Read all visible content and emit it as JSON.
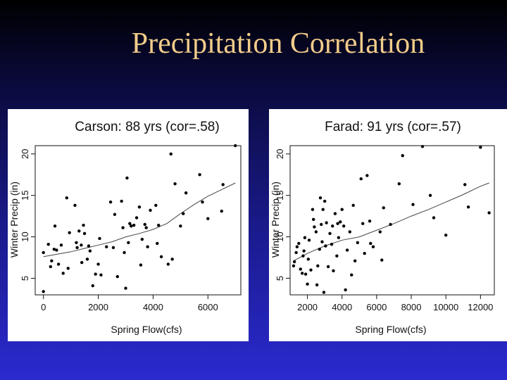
{
  "slide": {
    "title": "Precipitation Correlation",
    "background": "#1a1a8c",
    "title_color": "#f2cc8a"
  },
  "chart_data": [
    {
      "type": "scatter",
      "title": "Carson: 88 yrs (cor=.58)",
      "xlabel": "Spring Flow(cfs)",
      "ylabel": "Winter Precip (in)",
      "xlim": [
        -300,
        7200
      ],
      "ylim": [
        3,
        21
      ],
      "xticks": [
        0,
        2000,
        4000,
        6000
      ],
      "xtick_labels": [
        "0",
        "2000",
        "4000",
        "6000"
      ],
      "yticks": [
        5,
        10,
        15,
        20
      ],
      "ytick_labels": [
        "5",
        "10",
        "15",
        "20"
      ],
      "trend": [
        [
          0,
          7.6
        ],
        [
          500,
          7.9
        ],
        [
          1000,
          8.2
        ],
        [
          1500,
          8.6
        ],
        [
          2000,
          9.0
        ],
        [
          2500,
          9.4
        ],
        [
          3000,
          10.0
        ],
        [
          3500,
          10.4
        ],
        [
          4000,
          10.9
        ],
        [
          4500,
          11.6
        ],
        [
          5000,
          12.8
        ],
        [
          5500,
          13.9
        ],
        [
          6000,
          14.9
        ],
        [
          6500,
          15.7
        ],
        [
          7000,
          16.5
        ]
      ],
      "points": [
        [
          0,
          3.4
        ],
        [
          0,
          8.1
        ],
        [
          180,
          9.1
        ],
        [
          260,
          6.4
        ],
        [
          300,
          7.1
        ],
        [
          390,
          8.5
        ],
        [
          420,
          11.3
        ],
        [
          480,
          8.4
        ],
        [
          550,
          6.7
        ],
        [
          650,
          9.0
        ],
        [
          720,
          5.6
        ],
        [
          850,
          14.7
        ],
        [
          900,
          6.2
        ],
        [
          950,
          10.5
        ],
        [
          1150,
          13.8
        ],
        [
          1200,
          9.3
        ],
        [
          1230,
          8.7
        ],
        [
          1300,
          10.7
        ],
        [
          1380,
          9.0
        ],
        [
          1400,
          6.9
        ],
        [
          1460,
          11.4
        ],
        [
          1500,
          10.4
        ],
        [
          1600,
          7.3
        ],
        [
          1650,
          8.9
        ],
        [
          1700,
          8.3
        ],
        [
          1800,
          4.1
        ],
        [
          1900,
          5.5
        ],
        [
          2000,
          6.7
        ],
        [
          2050,
          9.8
        ],
        [
          2100,
          5.4
        ],
        [
          2300,
          8.8
        ],
        [
          2450,
          14.2
        ],
        [
          2550,
          8.7
        ],
        [
          2600,
          12.7
        ],
        [
          2700,
          5.2
        ],
        [
          2850,
          14.3
        ],
        [
          2900,
          11.1
        ],
        [
          2950,
          8.1
        ],
        [
          3000,
          3.8
        ],
        [
          3050,
          17.1
        ],
        [
          3100,
          9.3
        ],
        [
          3150,
          11.6
        ],
        [
          3200,
          11.3
        ],
        [
          3300,
          11.4
        ],
        [
          3400,
          12.3
        ],
        [
          3500,
          13.6
        ],
        [
          3550,
          6.6
        ],
        [
          3600,
          9.7
        ],
        [
          3700,
          11.5
        ],
        [
          3750,
          11.1
        ],
        [
          3800,
          8.8
        ],
        [
          3900,
          13.2
        ],
        [
          4100,
          13.8
        ],
        [
          4150,
          9.2
        ],
        [
          4200,
          11.4
        ],
        [
          4300,
          7.6
        ],
        [
          4550,
          6.7
        ],
        [
          4650,
          20.0
        ],
        [
          4700,
          7.3
        ],
        [
          4800,
          16.4
        ],
        [
          5000,
          11.3
        ],
        [
          5100,
          12.8
        ],
        [
          5200,
          15.3
        ],
        [
          5700,
          17.5
        ],
        [
          5800,
          14.2
        ],
        [
          6000,
          12.2
        ],
        [
          6500,
          13.1
        ],
        [
          6550,
          16.3
        ],
        [
          7000,
          21.0
        ]
      ]
    },
    {
      "type": "scatter",
      "title": "Farad: 91 yrs (cor=.57)",
      "xlabel": "Spring Flow(cfs)",
      "ylabel": "Winter Precip (in)",
      "xlim": [
        1000,
        12800
      ],
      "ylim": [
        3,
        21
      ],
      "xticks": [
        2000,
        4000,
        6000,
        8000,
        10000,
        12000
      ],
      "xtick_labels": [
        "2000",
        "4000",
        "6000",
        "8000",
        "10000",
        "12000"
      ],
      "yticks": [
        5,
        10,
        15,
        20
      ],
      "ytick_labels": [
        "5",
        "10",
        "15",
        "20"
      ],
      "trend": [
        [
          1200,
          7.1
        ],
        [
          2000,
          8.0
        ],
        [
          3000,
          8.9
        ],
        [
          4000,
          9.6
        ],
        [
          5000,
          10.0
        ],
        [
          6000,
          10.8
        ],
        [
          7000,
          11.6
        ],
        [
          8000,
          12.5
        ],
        [
          9000,
          13.3
        ],
        [
          10000,
          14.2
        ],
        [
          11000,
          15.1
        ],
        [
          12000,
          16.1
        ],
        [
          12500,
          16.5
        ]
      ],
      "points": [
        [
          1200,
          6.5
        ],
        [
          1250,
          7.0
        ],
        [
          1350,
          8.1
        ],
        [
          1400,
          8.8
        ],
        [
          1500,
          9.2
        ],
        [
          1600,
          6.1
        ],
        [
          1700,
          5.6
        ],
        [
          1750,
          7.7
        ],
        [
          1800,
          8.3
        ],
        [
          1850,
          9.9
        ],
        [
          1900,
          5.5
        ],
        [
          2000,
          4.3
        ],
        [
          2050,
          7.3
        ],
        [
          2100,
          9.6
        ],
        [
          2200,
          6.0
        ],
        [
          2300,
          13.3
        ],
        [
          2350,
          12.1
        ],
        [
          2400,
          11.2
        ],
        [
          2500,
          10.6
        ],
        [
          2550,
          4.2
        ],
        [
          2600,
          6.5
        ],
        [
          2700,
          8.5
        ],
        [
          2750,
          14.7
        ],
        [
          2800,
          11.5
        ],
        [
          2850,
          9.4
        ],
        [
          2900,
          13.3
        ],
        [
          2950,
          3.3
        ],
        [
          3000,
          14.3
        ],
        [
          3050,
          8.9
        ],
        [
          3100,
          11.7
        ],
        [
          3200,
          6.4
        ],
        [
          3300,
          10.4
        ],
        [
          3400,
          9.1
        ],
        [
          3450,
          11.3
        ],
        [
          3500,
          5.9
        ],
        [
          3600,
          12.8
        ],
        [
          3700,
          7.7
        ],
        [
          3750,
          11.6
        ],
        [
          3800,
          9.9
        ],
        [
          3900,
          11.8
        ],
        [
          4000,
          13.3
        ],
        [
          4100,
          11.3
        ],
        [
          4200,
          3.6
        ],
        [
          4300,
          8.4
        ],
        [
          4450,
          10.6
        ],
        [
          4550,
          5.4
        ],
        [
          4650,
          13.8
        ],
        [
          4750,
          7.1
        ],
        [
          4900,
          9.3
        ],
        [
          5100,
          17.0
        ],
        [
          5200,
          11.6
        ],
        [
          5300,
          8.0
        ],
        [
          5450,
          17.4
        ],
        [
          5600,
          11.9
        ],
        [
          5650,
          9.2
        ],
        [
          5800,
          8.8
        ],
        [
          6200,
          10.6
        ],
        [
          6300,
          7.2
        ],
        [
          6400,
          13.5
        ],
        [
          6800,
          11.5
        ],
        [
          7300,
          16.4
        ],
        [
          7500,
          19.8
        ],
        [
          8100,
          13.9
        ],
        [
          8650,
          20.9
        ],
        [
          9100,
          15.0
        ],
        [
          9300,
          12.3
        ],
        [
          10000,
          10.2
        ],
        [
          11100,
          16.3
        ],
        [
          11300,
          13.6
        ],
        [
          12000,
          20.8
        ],
        [
          12500,
          12.9
        ]
      ]
    }
  ]
}
